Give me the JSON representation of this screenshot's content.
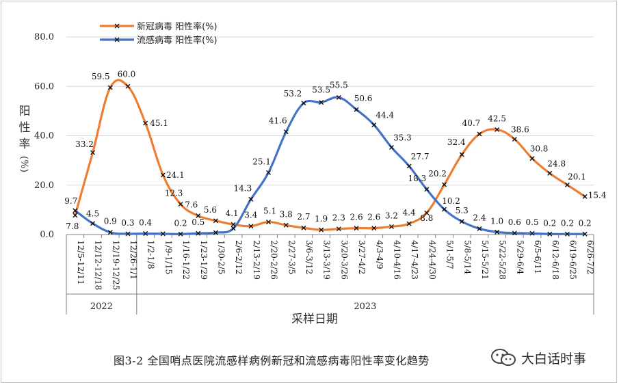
{
  "chart_data": {
    "type": "line",
    "caption": "图3-2 全国哨点医院流感样病例新冠和流感病毒阳性率变化趋势",
    "xlabel": "采样日期",
    "ylabel_chars": [
      "阳",
      "性",
      "率"
    ],
    "ylabel_unit": "(%)",
    "ylim": [
      0,
      80
    ],
    "yticks": [
      "0.0",
      "20.0",
      "40.0",
      "60.0",
      "80.0"
    ],
    "year_labels": [
      "2022",
      "2023"
    ],
    "categories": [
      "12/5-12/11",
      "12/12-12/18",
      "12/19-12/25",
      "12/26-1/1",
      "1/2-1/8",
      "1/9-1/15",
      "1/16-1/22",
      "1/23-1/29",
      "1/30-2/5",
      "2/6-2/12",
      "2/13-2/19",
      "2/20-2/26",
      "2/27-3/5",
      "3/6-3/12",
      "3/13-3/19",
      "3/20-3/26",
      "3/27-4/2",
      "4/3-4/9",
      "4/10-4/16",
      "4/17-4/23",
      "4/24-4/30",
      "5/1-5/7",
      "5/8-5/14",
      "5/15-5/21",
      "5/22-5/28",
      "5/29-6/4",
      "6/5-6/11",
      "6/12-6/18",
      "6/19-6/25",
      "6/26-7/2"
    ],
    "series": [
      {
        "name": "新冠病毒 阳性率(%)",
        "color": "#ed7d31",
        "values": [
          7.8,
          33.2,
          59.5,
          60.0,
          45.1,
          24.1,
          12.3,
          7.6,
          5.6,
          4.1,
          3.4,
          5.1,
          3.8,
          2.7,
          1.9,
          2.3,
          2.6,
          2.6,
          3.2,
          4.4,
          8.8,
          20.2,
          32.4,
          40.7,
          42.5,
          38.6,
          30.8,
          24.8,
          20.1,
          15.4
        ],
        "labels": [
          "7.8",
          "33.2",
          "59.5",
          "60.0",
          "45.1",
          "24.1",
          "12.3",
          "7.6",
          "5.6",
          "4.1",
          "3.4",
          "5.1",
          "3.8",
          "2.7",
          "1.9",
          "2.3",
          "2.6",
          "2.6",
          "3.2",
          "4.4",
          "8.8",
          "20.2",
          "32.4",
          "40.7",
          "42.5",
          "38.6",
          "30.8",
          "24.8",
          "20.1",
          "15.4"
        ]
      },
      {
        "name": "流感病毒 阳性率(%)",
        "color": "#4472c4",
        "values": [
          9.7,
          4.5,
          0.9,
          0.3,
          0.4,
          0.3,
          0.2,
          0.5,
          0.8,
          2.5,
          14.3,
          25.1,
          41.6,
          53.2,
          53.5,
          55.5,
          50.6,
          44.4,
          35.3,
          27.7,
          18.3,
          10.2,
          5.3,
          2.4,
          1.0,
          0.6,
          0.5,
          0.2,
          0.2,
          0.2
        ],
        "labels": [
          "9.7",
          "4.5",
          "0.9",
          "0.3",
          "0.4",
          "",
          "0.2",
          "0.5",
          "",
          "",
          "14.3",
          "25.1",
          "41.6",
          "53.2",
          "53.5",
          "55.5",
          "50.6",
          "44.4",
          "35.3",
          "27.7",
          "18.3",
          "10.2",
          "5.3",
          "2.4",
          "1.0",
          "0.6",
          "0.5",
          "0.2",
          "0.2",
          "0.2"
        ]
      }
    ]
  },
  "watermark": {
    "text": "大白话时事",
    "icon": "wechat-icon"
  }
}
